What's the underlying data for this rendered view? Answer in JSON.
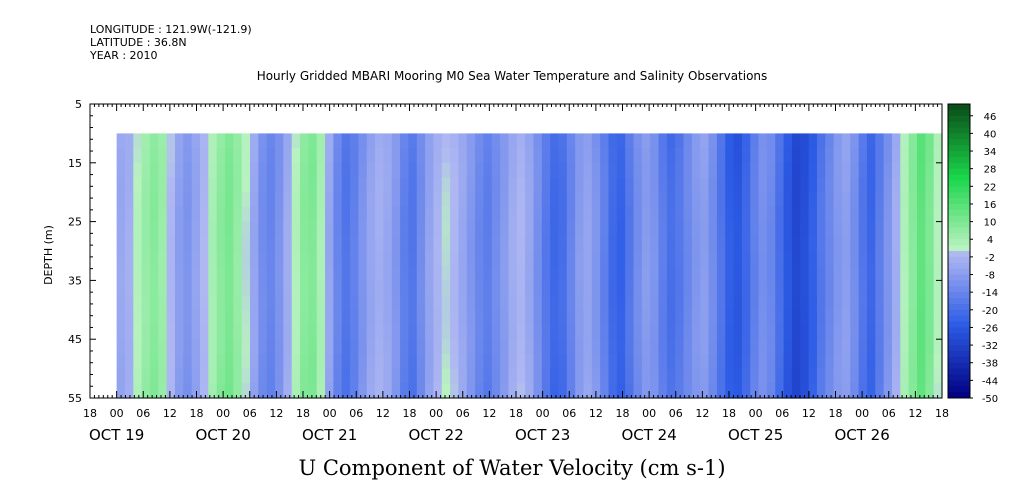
{
  "header": {
    "longitude": "LONGITUDE : 121.9W(-121.9)",
    "latitude": "LATITUDE : 36.8N",
    "year": "YEAR : 2010"
  },
  "chart_data": {
    "type": "heatmap",
    "title": "Hourly Gridded MBARI Mooring M0 Sea Water Temperature and Salinity Observations",
    "xlabel": "U Component of Water Velocity (cm s-1)",
    "ylabel": "DEPTH (m)",
    "ylim": [
      55,
      5
    ],
    "y_ticks": [
      "5",
      "15",
      "25",
      "35",
      "45",
      "55"
    ],
    "x_range_hours": [
      0,
      192
    ],
    "x_hour_ticks": [
      "18",
      "00",
      "06",
      "12",
      "18",
      "00",
      "06",
      "12",
      "18",
      "00",
      "06",
      "12",
      "18",
      "00",
      "06",
      "12",
      "18",
      "00",
      "06",
      "12",
      "18",
      "00",
      "06",
      "12",
      "18",
      "00",
      "06",
      "12",
      "18",
      "00",
      "06",
      "12",
      "18"
    ],
    "x_date_labels": [
      "OCT 19",
      "OCT 20",
      "OCT 21",
      "OCT 22",
      "OCT 23",
      "OCT 24",
      "OCT 25",
      "OCT 26"
    ],
    "data_depth_range": [
      10,
      55
    ],
    "data_start_hour": 6,
    "colorbar": {
      "range": [
        -50,
        50
      ],
      "labels": [
        "46",
        "40",
        "34",
        "28",
        "22",
        "16",
        "10",
        "4",
        "-2",
        "-8",
        "-14",
        "-20",
        "-26",
        "-32",
        "-38",
        "-44",
        "-50"
      ]
    },
    "column_values": [
      -5,
      -3,
      2,
      6,
      8,
      5,
      -2,
      -8,
      -10,
      -6,
      -1,
      4,
      8,
      10,
      6,
      0,
      -6,
      -12,
      -14,
      -10,
      -4,
      2,
      8,
      9,
      3,
      -6,
      -14,
      -18,
      -15,
      -10,
      -6,
      -4,
      -6,
      -10,
      -16,
      -18,
      -12,
      -6,
      -2,
      0,
      -2,
      -6,
      -10,
      -14,
      -16,
      -12,
      -8,
      -4,
      -2,
      -6,
      -12,
      -18,
      -22,
      -20,
      -14,
      -8,
      -6,
      -10,
      -16,
      -22,
      -24,
      -18,
      -12,
      -8,
      -10,
      -16,
      -20,
      -18,
      -14,
      -10,
      -8,
      -12,
      -18,
      -24,
      -26,
      -22,
      -16,
      -12,
      -14,
      -20,
      -26,
      -30,
      -28,
      -24,
      -18,
      -14,
      -10,
      -8,
      -12,
      -18,
      -22,
      -16,
      -10,
      -4,
      2,
      8,
      14,
      10,
      2
    ],
    "depth_gradient": 0.18
  },
  "colors": {
    "negative_max": "#000080",
    "negative_mid": "#2d5ce6",
    "near_zero_neg": "#b0b8f2",
    "near_zero_pos": "#b8f2c0",
    "positive_mid": "#1ad64a",
    "positive_max": "#0a4a18"
  }
}
